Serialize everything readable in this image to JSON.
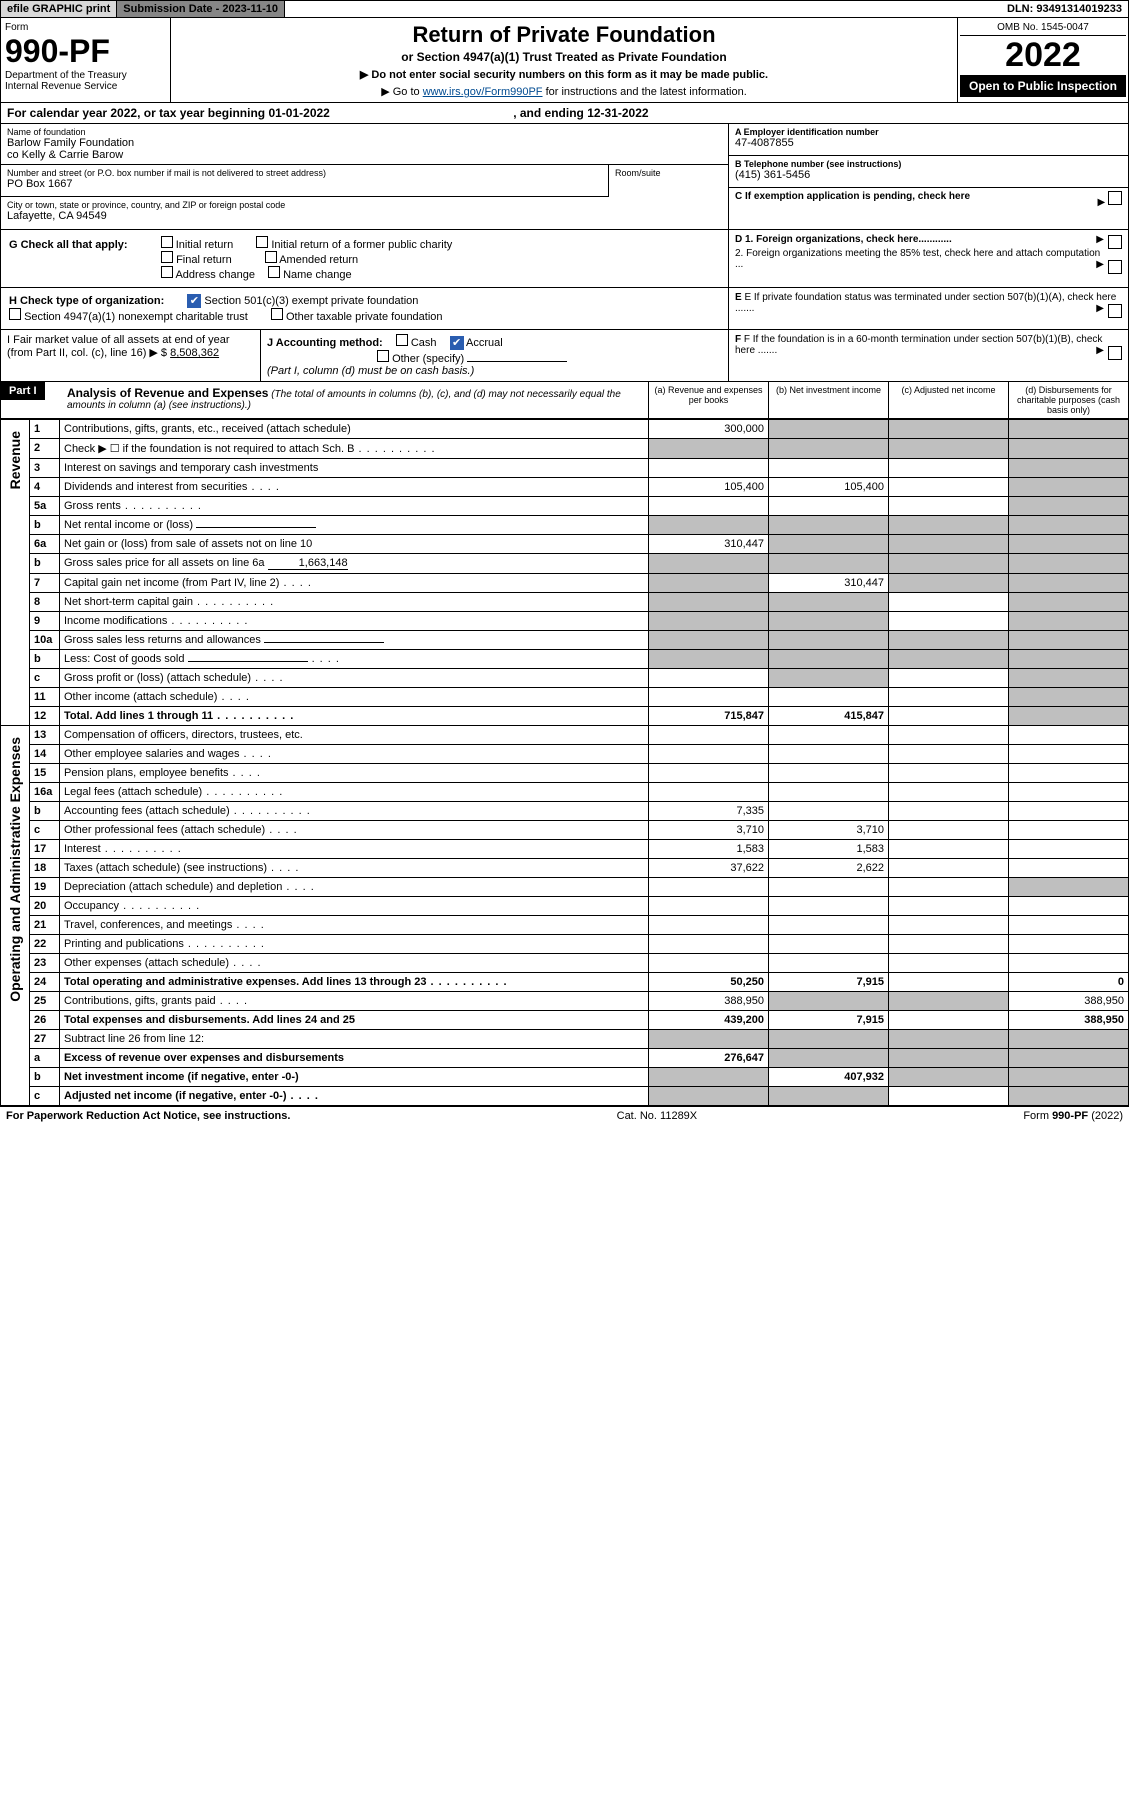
{
  "topbar": {
    "efile": "efile GRAPHIC print",
    "subdate_label": "Submission Date - ",
    "subdate": "2023-11-10",
    "dln_label": "DLN: ",
    "dln": "93491314019233"
  },
  "header": {
    "form_prefix": "Form",
    "form_number": "990-PF",
    "dept": "Department of the Treasury",
    "irs": "Internal Revenue Service",
    "title": "Return of Private Foundation",
    "subtitle": "or Section 4947(a)(1) Trust Treated as Private Foundation",
    "note1": "▶ Do not enter social security numbers on this form as it may be made public.",
    "note2_pre": "▶ Go to ",
    "note2_link": "www.irs.gov/Form990PF",
    "note2_post": " for instructions and the latest information.",
    "omb": "OMB No. 1545-0047",
    "year": "2022",
    "open": "Open to Public Inspection"
  },
  "calyear": {
    "text_pre": "For calendar year 2022, or tax year beginning ",
    "begin": "01-01-2022",
    "mid": " , and ending ",
    "end": "12-31-2022"
  },
  "entity": {
    "name_lbl": "Name of foundation",
    "name1": "Barlow Family Foundation",
    "name2": "co Kelly & Carrie Barow",
    "ein_lbl": "A Employer identification number",
    "ein": "47-4087855",
    "addr_lbl": "Number and street (or P.O. box number if mail is not delivered to street address)",
    "addr": "PO Box 1667",
    "room_lbl": "Room/suite",
    "phone_lbl": "B Telephone number (see instructions)",
    "phone": "(415) 361-5456",
    "city_lbl": "City or town, state or province, country, and ZIP or foreign postal code",
    "city": "Lafayette, CA  94549",
    "c_lbl": "C If exemption application is pending, check here"
  },
  "checkG": {
    "label": "G Check all that apply:",
    "opts": [
      "Initial return",
      "Initial return of a former public charity",
      "Final return",
      "Amended return",
      "Address change",
      "Name change"
    ]
  },
  "rightD": {
    "d1": "D 1. Foreign organizations, check here............",
    "d2": "2. Foreign organizations meeting the 85% test, check here and attach computation ...",
    "e": "E  If private foundation status was terminated under section 507(b)(1)(A), check here .......",
    "f": "F  If the foundation is in a 60-month termination under section 507(b)(1)(B), check here ......."
  },
  "checkH": {
    "label": "H Check type of organization:",
    "opt1": "Section 501(c)(3) exempt private foundation",
    "opt2": "Section 4947(a)(1) nonexempt charitable trust",
    "opt3": "Other taxable private foundation"
  },
  "lineI": {
    "label": "I Fair market value of all assets at end of year (from Part II, col. (c), line 16) ▶ $",
    "value": "8,508,362"
  },
  "lineJ": {
    "label": "J Accounting method:",
    "cash": "Cash",
    "accrual": "Accrual",
    "other": "Other (specify)",
    "note": "(Part I, column (d) must be on cash basis.)"
  },
  "part1": {
    "tag": "Part I",
    "title": "Analysis of Revenue and Expenses",
    "subtitle": " (The total of amounts in columns (b), (c), and (d) may not necessarily equal the amounts in column (a) (see instructions).)",
    "col_a": "(a) Revenue and expenses per books",
    "col_b": "(b) Net investment income",
    "col_c": "(c) Adjusted net income",
    "col_d": "(d) Disbursements for charitable purposes (cash basis only)"
  },
  "side_labels": {
    "revenue": "Revenue",
    "expenses": "Operating and Administrative Expenses"
  },
  "rows": [
    {
      "no": "1",
      "desc": "Contributions, gifts, grants, etc., received (attach schedule)",
      "a": "300,000",
      "b": "",
      "c": "",
      "d": "",
      "shade_b": true,
      "shade_c": true,
      "shade_d": true
    },
    {
      "no": "2",
      "desc": "Check ▶ ☐ if the foundation is not required to attach Sch. B",
      "a": "",
      "b": "",
      "c": "",
      "d": "",
      "shade_a": true,
      "shade_b": true,
      "shade_c": true,
      "shade_d": true,
      "dots": true
    },
    {
      "no": "3",
      "desc": "Interest on savings and temporary cash investments",
      "a": "",
      "b": "",
      "c": "",
      "d": "",
      "shade_d": true
    },
    {
      "no": "4",
      "desc": "Dividends and interest from securities",
      "a": "105,400",
      "b": "105,400",
      "c": "",
      "d": "",
      "shade_d": true,
      "dots_short": true
    },
    {
      "no": "5a",
      "desc": "Gross rents",
      "a": "",
      "b": "",
      "c": "",
      "d": "",
      "shade_d": true,
      "dots": true
    },
    {
      "no": "b",
      "desc": "Net rental income or (loss)",
      "a": "",
      "b": "",
      "c": "",
      "d": "",
      "shade_a": true,
      "shade_b": true,
      "shade_c": true,
      "shade_d": true,
      "inline_blank": true
    },
    {
      "no": "6a",
      "desc": "Net gain or (loss) from sale of assets not on line 10",
      "a": "310,447",
      "b": "",
      "c": "",
      "d": "",
      "shade_b": true,
      "shade_c": true,
      "shade_d": true
    },
    {
      "no": "b",
      "desc": "Gross sales price for all assets on line 6a",
      "inline_val": "1,663,148",
      "a": "",
      "b": "",
      "c": "",
      "d": "",
      "shade_a": true,
      "shade_b": true,
      "shade_c": true,
      "shade_d": true
    },
    {
      "no": "7",
      "desc": "Capital gain net income (from Part IV, line 2)",
      "a": "",
      "b": "310,447",
      "c": "",
      "d": "",
      "shade_a": true,
      "shade_c": true,
      "shade_d": true,
      "dots_short": true
    },
    {
      "no": "8",
      "desc": "Net short-term capital gain",
      "a": "",
      "b": "",
      "c": "",
      "d": "",
      "shade_a": true,
      "shade_b": true,
      "shade_d": true,
      "dots": true
    },
    {
      "no": "9",
      "desc": "Income modifications",
      "a": "",
      "b": "",
      "c": "",
      "d": "",
      "shade_a": true,
      "shade_b": true,
      "shade_d": true,
      "dots": true
    },
    {
      "no": "10a",
      "desc": "Gross sales less returns and allowances",
      "a": "",
      "b": "",
      "c": "",
      "d": "",
      "shade_a": true,
      "shade_b": true,
      "shade_c": true,
      "shade_d": true,
      "inline_blank": true
    },
    {
      "no": "b",
      "desc": "Less: Cost of goods sold",
      "a": "",
      "b": "",
      "c": "",
      "d": "",
      "shade_a": true,
      "shade_b": true,
      "shade_c": true,
      "shade_d": true,
      "inline_blank": true,
      "dots_short": true
    },
    {
      "no": "c",
      "desc": "Gross profit or (loss) (attach schedule)",
      "a": "",
      "b": "",
      "c": "",
      "d": "",
      "shade_b": true,
      "shade_d": true,
      "dots_short": true
    },
    {
      "no": "11",
      "desc": "Other income (attach schedule)",
      "a": "",
      "b": "",
      "c": "",
      "d": "",
      "shade_d": true,
      "dots_short": true
    },
    {
      "no": "12",
      "desc": "Total. Add lines 1 through 11",
      "a": "715,847",
      "b": "415,847",
      "c": "",
      "d": "",
      "shade_d": true,
      "bold": true,
      "dots": true
    },
    {
      "no": "13",
      "desc": "Compensation of officers, directors, trustees, etc.",
      "a": "",
      "b": "",
      "c": "",
      "d": ""
    },
    {
      "no": "14",
      "desc": "Other employee salaries and wages",
      "a": "",
      "b": "",
      "c": "",
      "d": "",
      "dots_short": true
    },
    {
      "no": "15",
      "desc": "Pension plans, employee benefits",
      "a": "",
      "b": "",
      "c": "",
      "d": "",
      "dots_short": true
    },
    {
      "no": "16a",
      "desc": "Legal fees (attach schedule)",
      "a": "",
      "b": "",
      "c": "",
      "d": "",
      "dots": true
    },
    {
      "no": "b",
      "desc": "Accounting fees (attach schedule)",
      "a": "7,335",
      "b": "",
      "c": "",
      "d": "",
      "dots": true
    },
    {
      "no": "c",
      "desc": "Other professional fees (attach schedule)",
      "a": "3,710",
      "b": "3,710",
      "c": "",
      "d": "",
      "dots_short": true
    },
    {
      "no": "17",
      "desc": "Interest",
      "a": "1,583",
      "b": "1,583",
      "c": "",
      "d": "",
      "dots": true
    },
    {
      "no": "18",
      "desc": "Taxes (attach schedule) (see instructions)",
      "a": "37,622",
      "b": "2,622",
      "c": "",
      "d": "",
      "dots_short": true
    },
    {
      "no": "19",
      "desc": "Depreciation (attach schedule) and depletion",
      "a": "",
      "b": "",
      "c": "",
      "d": "",
      "shade_d": true,
      "dots_short": true
    },
    {
      "no": "20",
      "desc": "Occupancy",
      "a": "",
      "b": "",
      "c": "",
      "d": "",
      "dots": true
    },
    {
      "no": "21",
      "desc": "Travel, conferences, and meetings",
      "a": "",
      "b": "",
      "c": "",
      "d": "",
      "dots_short": true
    },
    {
      "no": "22",
      "desc": "Printing and publications",
      "a": "",
      "b": "",
      "c": "",
      "d": "",
      "dots": true
    },
    {
      "no": "23",
      "desc": "Other expenses (attach schedule)",
      "a": "",
      "b": "",
      "c": "",
      "d": "",
      "dots_short": true
    },
    {
      "no": "24",
      "desc": "Total operating and administrative expenses. Add lines 13 through 23",
      "a": "50,250",
      "b": "7,915",
      "c": "",
      "d": "0",
      "bold": true,
      "dots": true
    },
    {
      "no": "25",
      "desc": "Contributions, gifts, grants paid",
      "a": "388,950",
      "b": "",
      "c": "",
      "d": "388,950",
      "shade_b": true,
      "shade_c": true,
      "dots_short": true
    },
    {
      "no": "26",
      "desc": "Total expenses and disbursements. Add lines 24 and 25",
      "a": "439,200",
      "b": "7,915",
      "c": "",
      "d": "388,950",
      "bold": true
    },
    {
      "no": "27",
      "desc": "Subtract line 26 from line 12:",
      "a": "",
      "b": "",
      "c": "",
      "d": "",
      "shade_a": true,
      "shade_b": true,
      "shade_c": true,
      "shade_d": true
    },
    {
      "no": "a",
      "desc": "Excess of revenue over expenses and disbursements",
      "a": "276,647",
      "b": "",
      "c": "",
      "d": "",
      "shade_b": true,
      "shade_c": true,
      "shade_d": true,
      "bold": true
    },
    {
      "no": "b",
      "desc": "Net investment income (if negative, enter -0-)",
      "a": "",
      "b": "407,932",
      "c": "",
      "d": "",
      "shade_a": true,
      "shade_c": true,
      "shade_d": true,
      "bold": true
    },
    {
      "no": "c",
      "desc": "Adjusted net income (if negative, enter -0-)",
      "a": "",
      "b": "",
      "c": "",
      "d": "",
      "shade_a": true,
      "shade_b": true,
      "shade_d": true,
      "bold": true,
      "dots_short": true
    }
  ],
  "footer": {
    "left": "For Paperwork Reduction Act Notice, see instructions.",
    "center": "Cat. No. 11289X",
    "right": "Form 990-PF (2022)"
  },
  "colors": {
    "shade": "#bfbfbf",
    "link": "#004b91",
    "topbar_grey": "#d8d8d8",
    "topbar_dark": "#868686"
  }
}
